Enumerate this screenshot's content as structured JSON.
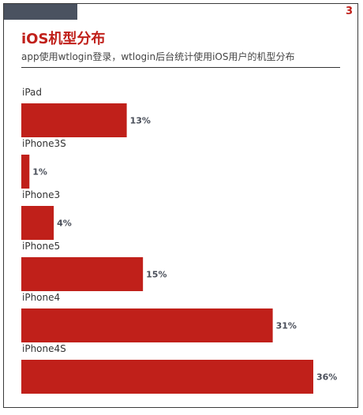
{
  "page": {
    "number": "3",
    "title": "iOS机型分布",
    "subtitle": "app使用wtlogin登录，wtlogin后台统计使用iOS用户的机型分布"
  },
  "colors": {
    "bar": "#c0201a",
    "accent_tab": "#4a5260"
  },
  "chart_data": {
    "type": "bar",
    "orientation": "horizontal",
    "categories": [
      "iPad",
      "iPhone3S",
      "iPhone3",
      "iPhone5",
      "iPhone4",
      "iPhone4S"
    ],
    "values": [
      13,
      1,
      4,
      15,
      31,
      36
    ],
    "value_labels": [
      "13%",
      "1%",
      "4%",
      "15%",
      "31%",
      "36%"
    ],
    "unit": "%",
    "title": "",
    "xlabel": "",
    "ylabel": "",
    "grid": false,
    "legend": "none",
    "xlim": [
      0,
      36
    ]
  }
}
